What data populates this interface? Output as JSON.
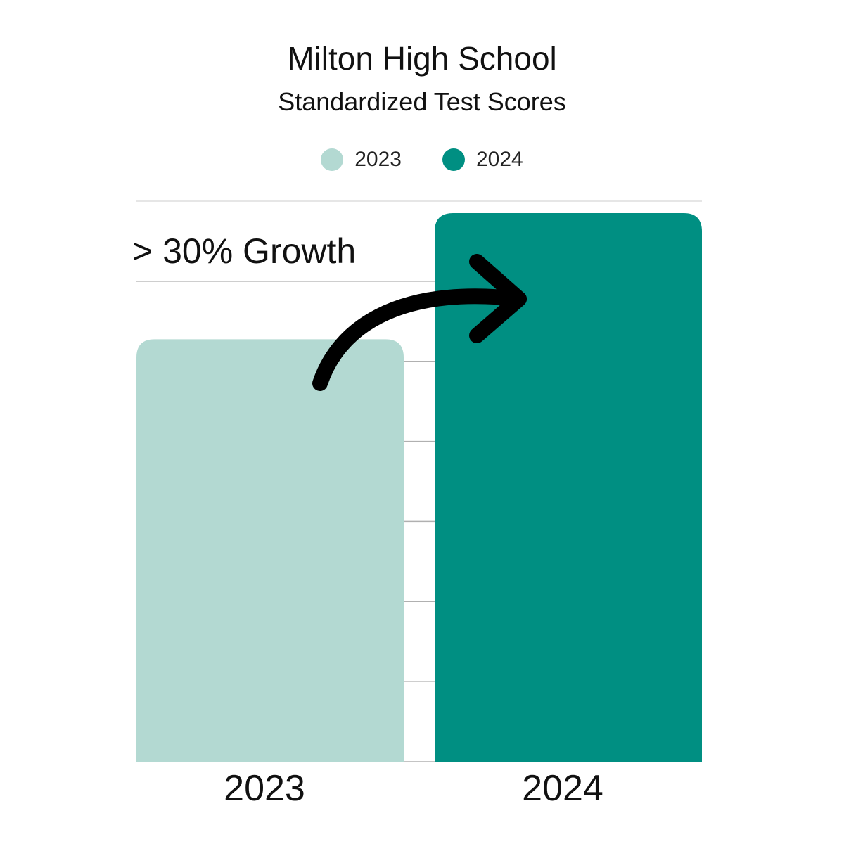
{
  "colors": {
    "series_2023": "#b3d9d2",
    "series_2024": "#008f82",
    "grid": "#b0b0b0",
    "arrow": "#000000"
  },
  "chart_data": {
    "type": "bar",
    "title": "Milton High School",
    "subtitle": "Standardized Test Scores",
    "categories": [
      "2023",
      "2024"
    ],
    "values": [
      0.77,
      1.0
    ],
    "legend": {
      "placement": "top-center",
      "entries": [
        "2023",
        "2024"
      ]
    },
    "annotation": {
      "text": "> 30% Growth",
      "arrow": "from-2023-to-2024-icon"
    },
    "ylim": [
      0,
      1
    ],
    "grid": true,
    "y_ticks_shown": false
  }
}
